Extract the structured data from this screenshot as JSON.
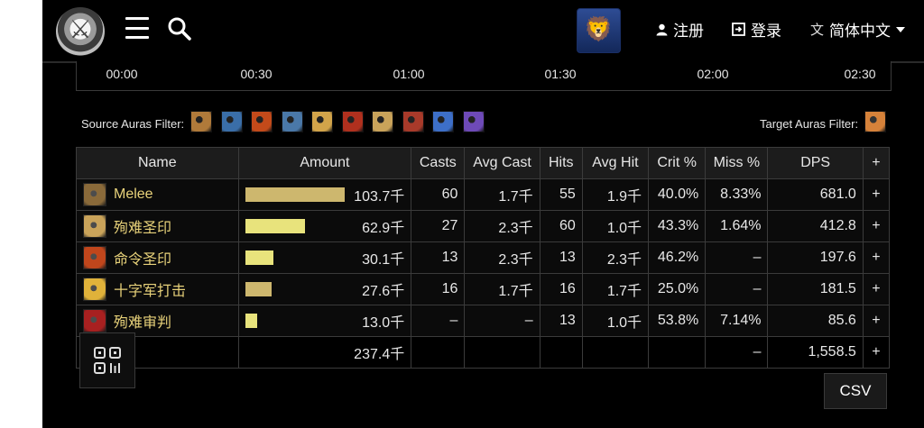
{
  "nav": {
    "register_label": "注册",
    "login_label": "登录",
    "language_label": "简体中文"
  },
  "timeline": {
    "ticks": [
      "00:00",
      "00:30",
      "01:00",
      "01:30",
      "02:00",
      "02:30"
    ]
  },
  "filters": {
    "source_label": "Source Auras Filter:",
    "target_label": "Target Auras Filter:"
  },
  "table": {
    "headers": {
      "name": "Name",
      "amount": "Amount",
      "casts": "Casts",
      "avg_cast": "Avg Cast",
      "hits": "Hits",
      "avg_hit": "Avg Hit",
      "crit": "Crit %",
      "miss": "Miss %",
      "dps": "DPS",
      "plus": "+"
    },
    "rows": [
      {
        "name": "Melee",
        "amount": "103.7千",
        "share": 1.0,
        "bar_color": "#cdb76e",
        "icon_color": "#8a6a3a",
        "casts": "60",
        "avg_cast": "1.7千",
        "hits": "55",
        "avg_hit": "1.9千",
        "crit": "40.0%",
        "miss": "8.33%",
        "dps": "681.0",
        "plus": "+"
      },
      {
        "name": "殉难圣印",
        "amount": "62.9千",
        "share": 0.607,
        "bar_color": "#e8e37c",
        "icon_color": "#c9a35a",
        "casts": "27",
        "avg_cast": "2.3千",
        "hits": "60",
        "avg_hit": "1.0千",
        "crit": "43.3%",
        "miss": "1.64%",
        "dps": "412.8",
        "plus": "+"
      },
      {
        "name": "命令圣印",
        "amount": "30.1千",
        "share": 0.29,
        "bar_color": "#e8e37c",
        "icon_color": "#c0461c",
        "casts": "13",
        "avg_cast": "2.3千",
        "hits": "13",
        "avg_hit": "2.3千",
        "crit": "46.2%",
        "miss": "–",
        "dps": "197.6",
        "plus": "+"
      },
      {
        "name": "十字军打击",
        "amount": "27.6千",
        "share": 0.266,
        "bar_color": "#cdb76e",
        "icon_color": "#e0b23a",
        "casts": "16",
        "avg_cast": "1.7千",
        "hits": "16",
        "avg_hit": "1.7千",
        "crit": "25.0%",
        "miss": "–",
        "dps": "181.5",
        "plus": "+"
      },
      {
        "name": "殉难审判",
        "amount": "13.0千",
        "share": 0.125,
        "bar_color": "#e8e37c",
        "icon_color": "#a82020",
        "casts": "–",
        "avg_cast": "–",
        "hits": "13",
        "avg_hit": "1.0千",
        "crit": "53.8%",
        "miss": "7.14%",
        "dps": "85.6",
        "plus": "+"
      }
    ],
    "total": {
      "amount": "237.4千",
      "miss": "–",
      "dps": "1,558.5",
      "plus": "+"
    }
  },
  "buttons": {
    "csv_label": "CSV"
  },
  "icons": {
    "logo": "site-logo-icon",
    "menu": "menu-icon",
    "search": "search-icon",
    "faction": "alliance-crest-icon",
    "user": "user-icon",
    "login": "login-icon",
    "language": "translate-icon",
    "dropdown": "chevron-down-icon",
    "qr": "qr-code-icon"
  },
  "colors": {
    "accent_name": "#e8d27a",
    "dps_green": "#b7e36a",
    "background": "#000000"
  },
  "aura_filters": {
    "source_icons": [
      "#b07a3a",
      "#3a6ea8",
      "#c34a1a",
      "#4a78a8",
      "#d2a44a",
      "#b0301e",
      "#c9a35a",
      "#a83a2a",
      "#3d6fc8",
      "#6e4ab8"
    ],
    "target_icons": [
      "#d6823a"
    ]
  }
}
